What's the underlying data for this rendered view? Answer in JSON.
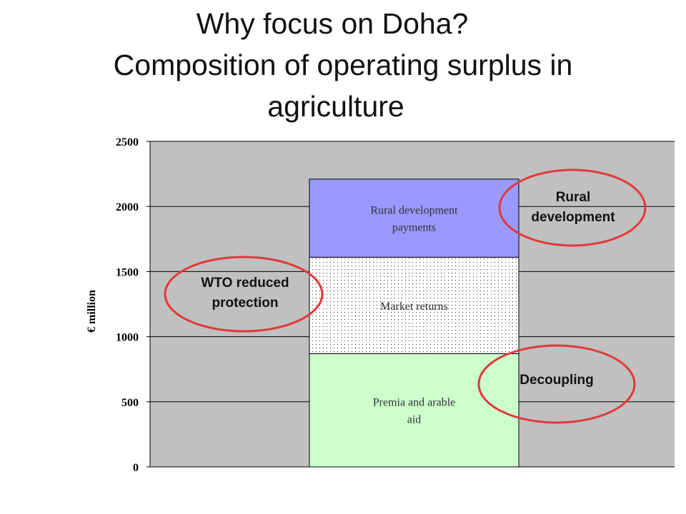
{
  "title_lines": [
    "Why focus on Doha?",
    "Composition of operating surplus in",
    "agriculture"
  ],
  "colors": {
    "plot_bg": "#c0c0c0",
    "premia": "#ccffcc",
    "market": "#ffffff",
    "rural": "#9999ff",
    "circle": "#e03a3a"
  },
  "chart_data": {
    "type": "bar",
    "stacked": true,
    "ylabel": "€ million",
    "ylim": [
      0,
      2500
    ],
    "yticks": [
      0,
      500,
      1000,
      1500,
      2000,
      2500
    ],
    "grid": true,
    "categories": [
      ""
    ],
    "series": [
      {
        "name": "Premia and arable aid",
        "label_lines": [
          "Premia and arable",
          "aid"
        ],
        "values": [
          870
        ],
        "pattern": "solid"
      },
      {
        "name": "Market returns",
        "label_lines": [
          "Market returns"
        ],
        "values": [
          740
        ],
        "pattern": "dotted"
      },
      {
        "name": "Rural development payments",
        "label_lines": [
          "Rural development",
          "payments"
        ],
        "values": [
          600
        ],
        "pattern": "solid"
      }
    ],
    "annotations": [
      {
        "id": "wto",
        "lines": [
          "WTO reduced",
          "protection"
        ]
      },
      {
        "id": "rural",
        "lines": [
          "Rural",
          "development"
        ]
      },
      {
        "id": "decoupling",
        "lines": [
          "Decoupling"
        ]
      }
    ]
  }
}
